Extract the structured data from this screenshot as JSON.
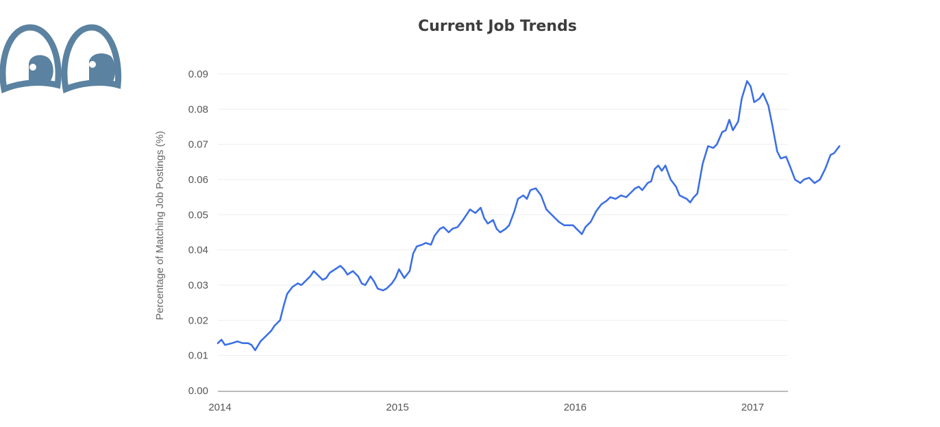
{
  "chart_data": {
    "type": "line",
    "title": "Current Job Trends",
    "ylabel": "Percentage of Matching Job Postings (%)",
    "xlabel": "",
    "ylim": [
      0,
      0.09
    ],
    "yticks": [
      "0.09",
      "0.08",
      "0.07",
      "0.06",
      "0.05",
      "0.04",
      "0.03",
      "0.02",
      "0.01",
      "0.00"
    ],
    "xticks": [
      "2014",
      "2015",
      "2016",
      "2017"
    ],
    "grid": true,
    "series": [
      {
        "color": "#3c6fe6",
        "points": [
          [
            2014.0,
            0.0135
          ],
          [
            2014.02,
            0.0145
          ],
          [
            2014.04,
            0.013
          ],
          [
            2014.08,
            0.0135
          ],
          [
            2014.11,
            0.014
          ],
          [
            2014.14,
            0.0135
          ],
          [
            2014.17,
            0.0135
          ],
          [
            2014.19,
            0.013
          ],
          [
            2014.21,
            0.0115
          ],
          [
            2014.24,
            0.014
          ],
          [
            2014.27,
            0.0155
          ],
          [
            2014.3,
            0.017
          ],
          [
            2014.32,
            0.0185
          ],
          [
            2014.35,
            0.02
          ],
          [
            2014.37,
            0.024
          ],
          [
            2014.39,
            0.0275
          ],
          [
            2014.42,
            0.0295
          ],
          [
            2014.45,
            0.0305
          ],
          [
            2014.47,
            0.03
          ],
          [
            2014.49,
            0.031
          ],
          [
            2014.52,
            0.0325
          ],
          [
            2014.54,
            0.034
          ],
          [
            2014.56,
            0.033
          ],
          [
            2014.59,
            0.0315
          ],
          [
            2014.61,
            0.032
          ],
          [
            2014.63,
            0.0335
          ],
          [
            2014.66,
            0.0345
          ],
          [
            2014.69,
            0.0355
          ],
          [
            2014.71,
            0.0345
          ],
          [
            2014.73,
            0.033
          ],
          [
            2014.76,
            0.034
          ],
          [
            2014.79,
            0.0325
          ],
          [
            2014.81,
            0.0305
          ],
          [
            2014.83,
            0.03
          ],
          [
            2014.86,
            0.0325
          ],
          [
            2014.88,
            0.031
          ],
          [
            2014.9,
            0.029
          ],
          [
            2014.93,
            0.0285
          ],
          [
            2014.95,
            0.029
          ],
          [
            2014.98,
            0.0305
          ],
          [
            2015.0,
            0.032
          ],
          [
            2015.02,
            0.0345
          ],
          [
            2015.05,
            0.032
          ],
          [
            2015.08,
            0.034
          ],
          [
            2015.1,
            0.039
          ],
          [
            2015.12,
            0.041
          ],
          [
            2015.15,
            0.0415
          ],
          [
            2015.17,
            0.042
          ],
          [
            2015.2,
            0.0415
          ],
          [
            2015.22,
            0.044
          ],
          [
            2015.25,
            0.046
          ],
          [
            2015.27,
            0.0465
          ],
          [
            2015.3,
            0.045
          ],
          [
            2015.32,
            0.046
          ],
          [
            2015.35,
            0.0465
          ],
          [
            2015.38,
            0.0485
          ],
          [
            2015.4,
            0.05
          ],
          [
            2015.42,
            0.0515
          ],
          [
            2015.45,
            0.0505
          ],
          [
            2015.48,
            0.052
          ],
          [
            2015.5,
            0.049
          ],
          [
            2015.52,
            0.0475
          ],
          [
            2015.55,
            0.0485
          ],
          [
            2015.57,
            0.046
          ],
          [
            2015.59,
            0.045
          ],
          [
            2015.62,
            0.046
          ],
          [
            2015.64,
            0.047
          ],
          [
            2015.67,
            0.051
          ],
          [
            2015.69,
            0.0545
          ],
          [
            2015.72,
            0.0555
          ],
          [
            2015.74,
            0.0545
          ],
          [
            2015.76,
            0.057
          ],
          [
            2015.79,
            0.0575
          ],
          [
            2015.82,
            0.0555
          ],
          [
            2015.85,
            0.0515
          ],
          [
            2015.87,
            0.0505
          ],
          [
            2015.89,
            0.0495
          ],
          [
            2015.92,
            0.048
          ],
          [
            2015.95,
            0.047
          ],
          [
            2015.97,
            0.047
          ],
          [
            2016.0,
            0.047
          ],
          [
            2016.02,
            0.046
          ],
          [
            2016.05,
            0.0445
          ],
          [
            2016.07,
            0.0465
          ],
          [
            2016.1,
            0.048
          ],
          [
            2016.13,
            0.051
          ],
          [
            2016.16,
            0.053
          ],
          [
            2016.19,
            0.054
          ],
          [
            2016.21,
            0.055
          ],
          [
            2016.24,
            0.0545
          ],
          [
            2016.27,
            0.0555
          ],
          [
            2016.3,
            0.055
          ],
          [
            2016.32,
            0.056
          ],
          [
            2016.35,
            0.0575
          ],
          [
            2016.37,
            0.058
          ],
          [
            2016.39,
            0.057
          ],
          [
            2016.42,
            0.059
          ],
          [
            2016.44,
            0.0595
          ],
          [
            2016.46,
            0.063
          ],
          [
            2016.48,
            0.064
          ],
          [
            2016.5,
            0.0625
          ],
          [
            2016.52,
            0.064
          ],
          [
            2016.55,
            0.06
          ],
          [
            2016.58,
            0.058
          ],
          [
            2016.6,
            0.0555
          ],
          [
            2016.62,
            0.055
          ],
          [
            2016.64,
            0.0545
          ],
          [
            2016.66,
            0.0535
          ],
          [
            2016.68,
            0.055
          ],
          [
            2016.7,
            0.056
          ],
          [
            2016.73,
            0.0645
          ],
          [
            2016.76,
            0.0695
          ],
          [
            2016.79,
            0.069
          ],
          [
            2016.81,
            0.07
          ],
          [
            2016.84,
            0.0735
          ],
          [
            2016.86,
            0.074
          ],
          [
            2016.88,
            0.077
          ],
          [
            2016.9,
            0.074
          ],
          [
            2016.93,
            0.0765
          ],
          [
            2016.95,
            0.083
          ],
          [
            2016.98,
            0.088
          ],
          [
            2017.0,
            0.0865
          ],
          [
            2017.02,
            0.082
          ],
          [
            2017.05,
            0.083
          ],
          [
            2017.07,
            0.0845
          ],
          [
            2017.1,
            0.081
          ],
          [
            2017.12,
            0.076
          ],
          [
            2017.15,
            0.068
          ],
          [
            2017.17,
            0.066
          ],
          [
            2017.2,
            0.0665
          ],
          [
            2017.22,
            0.064
          ],
          [
            2017.25,
            0.06
          ],
          [
            2017.28,
            0.059
          ],
          [
            2017.3,
            0.06
          ],
          [
            2017.33,
            0.0605
          ],
          [
            2017.36,
            0.059
          ],
          [
            2017.39,
            0.06
          ],
          [
            2017.42,
            0.063
          ],
          [
            2017.45,
            0.067
          ],
          [
            2017.47,
            0.0675
          ],
          [
            2017.5,
            0.0695
          ]
        ]
      }
    ]
  },
  "colors": {
    "line": "#3c6fe6",
    "logo": "#5b82a0",
    "title": "#3d3d3d",
    "grid": "#eeeeee",
    "axis": "#bbbbbb"
  },
  "logo": {
    "icon": "eyes-logo"
  }
}
